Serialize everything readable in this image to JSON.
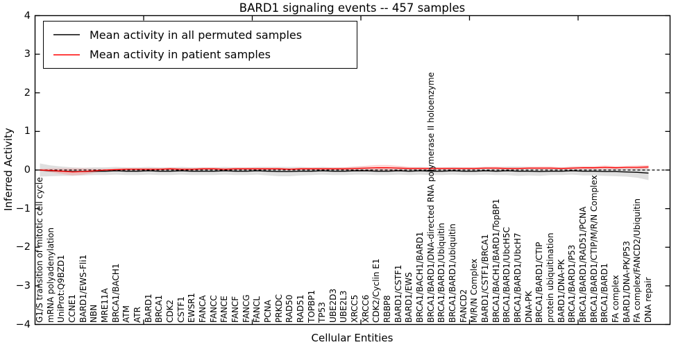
{
  "chart": {
    "title": "BARD1 signaling events -- 457 samples",
    "xlabel": "Cellular Entities",
    "ylabel": "Inferred Activity",
    "legend": [
      {
        "label": "Mean activity in all permuted samples",
        "color": "#000000"
      },
      {
        "label": "Mean activity in patient samples",
        "color": "#ff0000"
      }
    ]
  },
  "chart_data": {
    "type": "line",
    "title": "BARD1 signaling events -- 457 samples",
    "xlabel": "Cellular Entities",
    "ylabel": "Inferred Activity",
    "ylim": [
      -4,
      4
    ],
    "y_ticks": [
      "4",
      "3",
      "2",
      "1",
      "0",
      "−1",
      "−2",
      "−3",
      "−4"
    ],
    "y_tick_values": [
      4,
      3,
      2,
      1,
      0,
      -1,
      -2,
      -3,
      -4
    ],
    "grid": false,
    "legend_position": "upper left",
    "zero_line": {
      "value": 0,
      "style": "dashed",
      "color": "#000000"
    },
    "categories": [
      "G1/S transition of mitotic cell cycle",
      "mRNA polyadenylation",
      "UniProt:Q9BZD1",
      "CCNE1",
      "BARD1/EWS-Fli1",
      "NBN",
      "MRE11A",
      "BRCA1/BACH1",
      "ATM",
      "ATR",
      "BARD1",
      "BRCA1",
      "CDK2",
      "CSTF1",
      "EWSR1",
      "FANCA",
      "FANCC",
      "FANCE",
      "FANCF",
      "FANCG",
      "FANCL",
      "PCNA",
      "PRKDC",
      "RAD50",
      "RAD51",
      "TOPBP1",
      "TP53",
      "UBE2D3",
      "UBE2L3",
      "XRCC5",
      "XRCC6",
      "CDK2/Cyclin E1",
      "RBBP8",
      "BARD1/CSTF1",
      "BARD1/EWS",
      "BRCA1/BACH1/BARD1",
      "BRCA1/BARD1/DNA-directed RNA polymerase II holoenzyme",
      "BRCA1/BARD1/Ubiquitin",
      "BRCA1/BARD1/ubiquitin",
      "FANCD2",
      "M/R/N Complex",
      "BARD1/CSTF1/BRCA1",
      "BRCA1/BACH1/BARD1/TopBP1",
      "BRCA1/BARD1/UbcH5C",
      "BRCA1/BARD1/UbcH7",
      "DNA-PK",
      "BRCA1/BARD1/CTIP",
      "protein ubiquitination",
      "BARD1/DNA-PK",
      "BRCA1/BARD1/P53",
      "BRCA1/BARD1/RAD51/PCNA",
      "BRCA1/BARD1/CTIP/M/R/N Complex",
      "BRCA1/BARD1",
      "FA complex",
      "BARD1/DNA-PK/P53",
      "FA complex/FANCD2/Ubiquitin",
      "DNA repair"
    ],
    "series": [
      {
        "name": "Mean activity in all permuted samples",
        "color": "#000000",
        "band_color": "#bfbfbf",
        "band_opacity": 0.5,
        "values": [
          0.0,
          -0.02,
          -0.03,
          -0.04,
          -0.04,
          -0.03,
          -0.03,
          -0.02,
          -0.03,
          -0.03,
          -0.02,
          -0.03,
          -0.03,
          -0.02,
          -0.03,
          -0.03,
          -0.03,
          -0.02,
          -0.03,
          -0.03,
          -0.02,
          -0.03,
          -0.04,
          -0.04,
          -0.03,
          -0.03,
          -0.02,
          -0.03,
          -0.03,
          -0.02,
          -0.02,
          -0.03,
          -0.03,
          -0.02,
          -0.03,
          -0.02,
          -0.03,
          -0.03,
          -0.02,
          -0.03,
          -0.03,
          -0.02,
          -0.03,
          -0.02,
          -0.03,
          -0.03,
          -0.04,
          -0.03,
          -0.03,
          -0.02,
          -0.03,
          -0.03,
          -0.04,
          -0.04,
          -0.05,
          -0.06,
          -0.08
        ],
        "band_halfwidth": [
          0.17,
          0.14,
          0.12,
          0.11,
          0.1,
          0.1,
          0.1,
          0.1,
          0.1,
          0.1,
          0.1,
          0.1,
          0.1,
          0.1,
          0.1,
          0.1,
          0.1,
          0.1,
          0.1,
          0.1,
          0.1,
          0.11,
          0.12,
          0.12,
          0.11,
          0.1,
          0.1,
          0.1,
          0.1,
          0.1,
          0.1,
          0.1,
          0.1,
          0.1,
          0.1,
          0.1,
          0.1,
          0.1,
          0.1,
          0.1,
          0.1,
          0.1,
          0.1,
          0.11,
          0.12,
          0.11,
          0.11,
          0.1,
          0.1,
          0.1,
          0.11,
          0.11,
          0.11,
          0.12,
          0.12,
          0.14,
          0.18
        ]
      },
      {
        "name": "Mean activity in patient samples",
        "color": "#ff0000",
        "band_color": "#ff8080",
        "band_opacity": 0.35,
        "values": [
          0.0,
          -0.01,
          -0.03,
          -0.05,
          -0.04,
          -0.02,
          0.0,
          0.01,
          0.02,
          0.02,
          0.02,
          0.02,
          0.03,
          0.02,
          0.02,
          0.03,
          0.03,
          0.02,
          0.03,
          0.03,
          0.03,
          0.03,
          0.03,
          0.02,
          0.03,
          0.03,
          0.03,
          0.03,
          0.03,
          0.04,
          0.05,
          0.06,
          0.06,
          0.05,
          0.04,
          0.04,
          0.04,
          0.04,
          0.04,
          0.04,
          0.04,
          0.05,
          0.05,
          0.04,
          0.04,
          0.05,
          0.05,
          0.05,
          0.04,
          0.05,
          0.06,
          0.06,
          0.07,
          0.06,
          0.07,
          0.07,
          0.08
        ],
        "band_halfwidth": [
          0.03,
          0.05,
          0.07,
          0.09,
          0.08,
          0.05,
          0.03,
          0.03,
          0.03,
          0.03,
          0.03,
          0.03,
          0.03,
          0.03,
          0.03,
          0.03,
          0.03,
          0.03,
          0.03,
          0.03,
          0.03,
          0.03,
          0.03,
          0.03,
          0.03,
          0.03,
          0.03,
          0.03,
          0.04,
          0.05,
          0.06,
          0.07,
          0.07,
          0.06,
          0.04,
          0.03,
          0.03,
          0.03,
          0.03,
          0.03,
          0.03,
          0.03,
          0.04,
          0.03,
          0.03,
          0.03,
          0.04,
          0.04,
          0.03,
          0.04,
          0.04,
          0.04,
          0.05,
          0.04,
          0.04,
          0.05,
          0.05
        ]
      }
    ],
    "x_major_tick_values": [
      10,
      20,
      30,
      40,
      50
    ]
  }
}
